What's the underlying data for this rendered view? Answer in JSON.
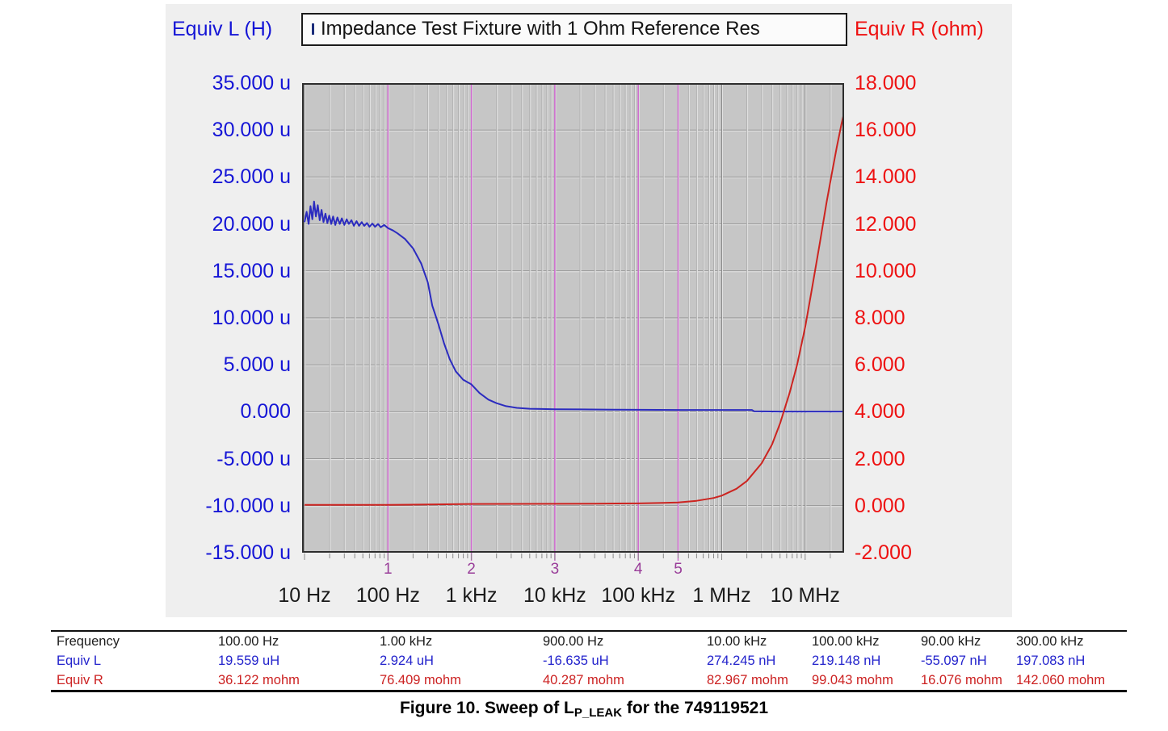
{
  "panel": {
    "title_box_text": "Impedance Test Fixture with 1 Ohm Reference Res"
  },
  "chart_data": {
    "type": "line",
    "title": "Impedance Test Fixture with 1 Ohm Reference Res",
    "x_axis": {
      "scale": "log",
      "unit": "Hz",
      "min_hz": 10,
      "max_hz": 30000000,
      "tick_hz": [
        10,
        100,
        1000,
        10000,
        100000,
        1000000,
        10000000
      ],
      "tick_labels": [
        "10 Hz",
        "100 Hz",
        "1 kHz",
        "10 kHz",
        "100 kHz",
        "1 MHz",
        "10 MHz"
      ]
    },
    "y_left_axis": {
      "label": "Equiv L (H)",
      "unit": "uH",
      "min": -15,
      "max": 35,
      "color": "#1515d6",
      "tick_labels": [
        "35.000 u",
        "30.000 u",
        "25.000 u",
        "20.000 u",
        "15.000 u",
        "10.000 u",
        "5.000 u",
        "0.000",
        "-5.000 u",
        "-10.000 u",
        "-15.000 u"
      ]
    },
    "y_right_axis": {
      "label": "Equiv R (ohm)",
      "unit": "ohm",
      "min": -2,
      "max": 18,
      "color": "#ee1111",
      "tick_labels": [
        "18.000",
        "16.000",
        "14.000",
        "12.000",
        "10.000",
        "8.000",
        "6.000",
        "4.000",
        "2.000",
        "0.000",
        "-2.000"
      ]
    },
    "markers": [
      {
        "label": "1",
        "hz": 100
      },
      {
        "label": "2",
        "hz": 1000
      },
      {
        "label": "3",
        "hz": 10000
      },
      {
        "label": "4",
        "hz": 100000
      },
      {
        "label": "5",
        "hz": 300000
      }
    ],
    "marker_color": "#d06ad0",
    "plot_background": "#c6c6c6",
    "series": [
      {
        "name": "Equiv L",
        "axis": "left",
        "color": "#2b2bbf",
        "points": [
          [
            10,
            20.2
          ],
          [
            10.6,
            21.3
          ],
          [
            11.2,
            20.0
          ],
          [
            11.8,
            21.9
          ],
          [
            12.4,
            20.5
          ],
          [
            13,
            22.4
          ],
          [
            13.7,
            20.8
          ],
          [
            14.4,
            22.0
          ],
          [
            15.2,
            20.4
          ],
          [
            16,
            21.5
          ],
          [
            16.9,
            20.2
          ],
          [
            17.8,
            21.1
          ],
          [
            18.8,
            20.1
          ],
          [
            19.8,
            20.9
          ],
          [
            20.9,
            20.0
          ],
          [
            22,
            20.8
          ],
          [
            23.4,
            19.9
          ],
          [
            24.8,
            20.7
          ],
          [
            26.4,
            20.0
          ],
          [
            28,
            20.6
          ],
          [
            30,
            19.9
          ],
          [
            32,
            20.5
          ],
          [
            34,
            20.0
          ],
          [
            36.5,
            20.4
          ],
          [
            39,
            19.8
          ],
          [
            42,
            20.3
          ],
          [
            45,
            19.8
          ],
          [
            48.5,
            20.2
          ],
          [
            52,
            19.8
          ],
          [
            56,
            20.1
          ],
          [
            60,
            19.7
          ],
          [
            65,
            20.05
          ],
          [
            70,
            19.7
          ],
          [
            76,
            20.0
          ],
          [
            82,
            19.65
          ],
          [
            90,
            19.9
          ],
          [
            100,
            19.559
          ],
          [
            115,
            19.3
          ],
          [
            130,
            19.0
          ],
          [
            160,
            18.4
          ],
          [
            200,
            17.4
          ],
          [
            250,
            15.8
          ],
          [
            300,
            13.8
          ],
          [
            340,
            11.3
          ],
          [
            400,
            9.4
          ],
          [
            470,
            7.3
          ],
          [
            550,
            5.6
          ],
          [
            650,
            4.3
          ],
          [
            800,
            3.4
          ],
          [
            1000,
            2.924
          ],
          [
            1250,
            2.0
          ],
          [
            1600,
            1.3
          ],
          [
            2000,
            0.92
          ],
          [
            2600,
            0.6
          ],
          [
            3500,
            0.42
          ],
          [
            5000,
            0.33
          ],
          [
            7000,
            0.3
          ],
          [
            10000,
            0.274
          ],
          [
            20000,
            0.26
          ],
          [
            50000,
            0.235
          ],
          [
            100000,
            0.219
          ],
          [
            300000,
            0.2
          ],
          [
            1000000,
            0.2
          ],
          [
            2300000,
            0.2
          ],
          [
            2450000,
            0.05
          ],
          [
            5000000,
            0.03
          ],
          [
            30000000,
            0.03
          ]
        ]
      },
      {
        "name": "Equiv R",
        "axis": "right",
        "color": "#cc2420",
        "points": [
          [
            10,
            0.036
          ],
          [
            100,
            0.036
          ],
          [
            300,
            0.05
          ],
          [
            1000,
            0.076
          ],
          [
            3000,
            0.08
          ],
          [
            10000,
            0.083
          ],
          [
            30000,
            0.09
          ],
          [
            100000,
            0.099
          ],
          [
            200000,
            0.12
          ],
          [
            300000,
            0.142
          ],
          [
            500000,
            0.21
          ],
          [
            800000,
            0.33
          ],
          [
            1000000,
            0.43
          ],
          [
            1500000,
            0.72
          ],
          [
            2000000,
            1.05
          ],
          [
            3000000,
            1.8
          ],
          [
            4000000,
            2.6
          ],
          [
            5000000,
            3.5
          ],
          [
            6500000,
            4.8
          ],
          [
            8000000,
            6.0
          ],
          [
            10000000,
            7.6
          ],
          [
            12000000,
            9.2
          ],
          [
            15000000,
            11.2
          ],
          [
            18000000,
            12.9
          ],
          [
            21000000,
            14.2
          ],
          [
            24000000,
            15.3
          ],
          [
            27000000,
            16.2
          ],
          [
            30000000,
            16.9
          ]
        ]
      }
    ]
  },
  "table": {
    "rows": [
      {
        "label": "Frequency",
        "color": "#1c1c1c",
        "values": [
          "100.00 Hz",
          "1.00 kHz",
          "900.00 Hz",
          "10.00 kHz",
          "100.00 kHz",
          "90.00 kHz",
          "300.00 kHz"
        ]
      },
      {
        "label": "Equiv L",
        "color": "#2323cc",
        "values": [
          "19.559 uH",
          "2.924 uH",
          "-16.635 uH",
          "274.245 nH",
          "219.148 nH",
          "-55.097 nH",
          "197.083 nH"
        ]
      },
      {
        "label": "Equiv R",
        "color": "#cc2222",
        "values": [
          "36.122 mohm",
          "76.409 mohm",
          "40.287 mohm",
          "82.967 mohm",
          "99.043 mohm",
          "16.076 mohm",
          "142.060 mohm"
        ]
      }
    ]
  },
  "caption": {
    "prefix": "Figure 10. Sweep of L",
    "subscript": "P_LEAK",
    "suffix": " for the 749119521"
  }
}
